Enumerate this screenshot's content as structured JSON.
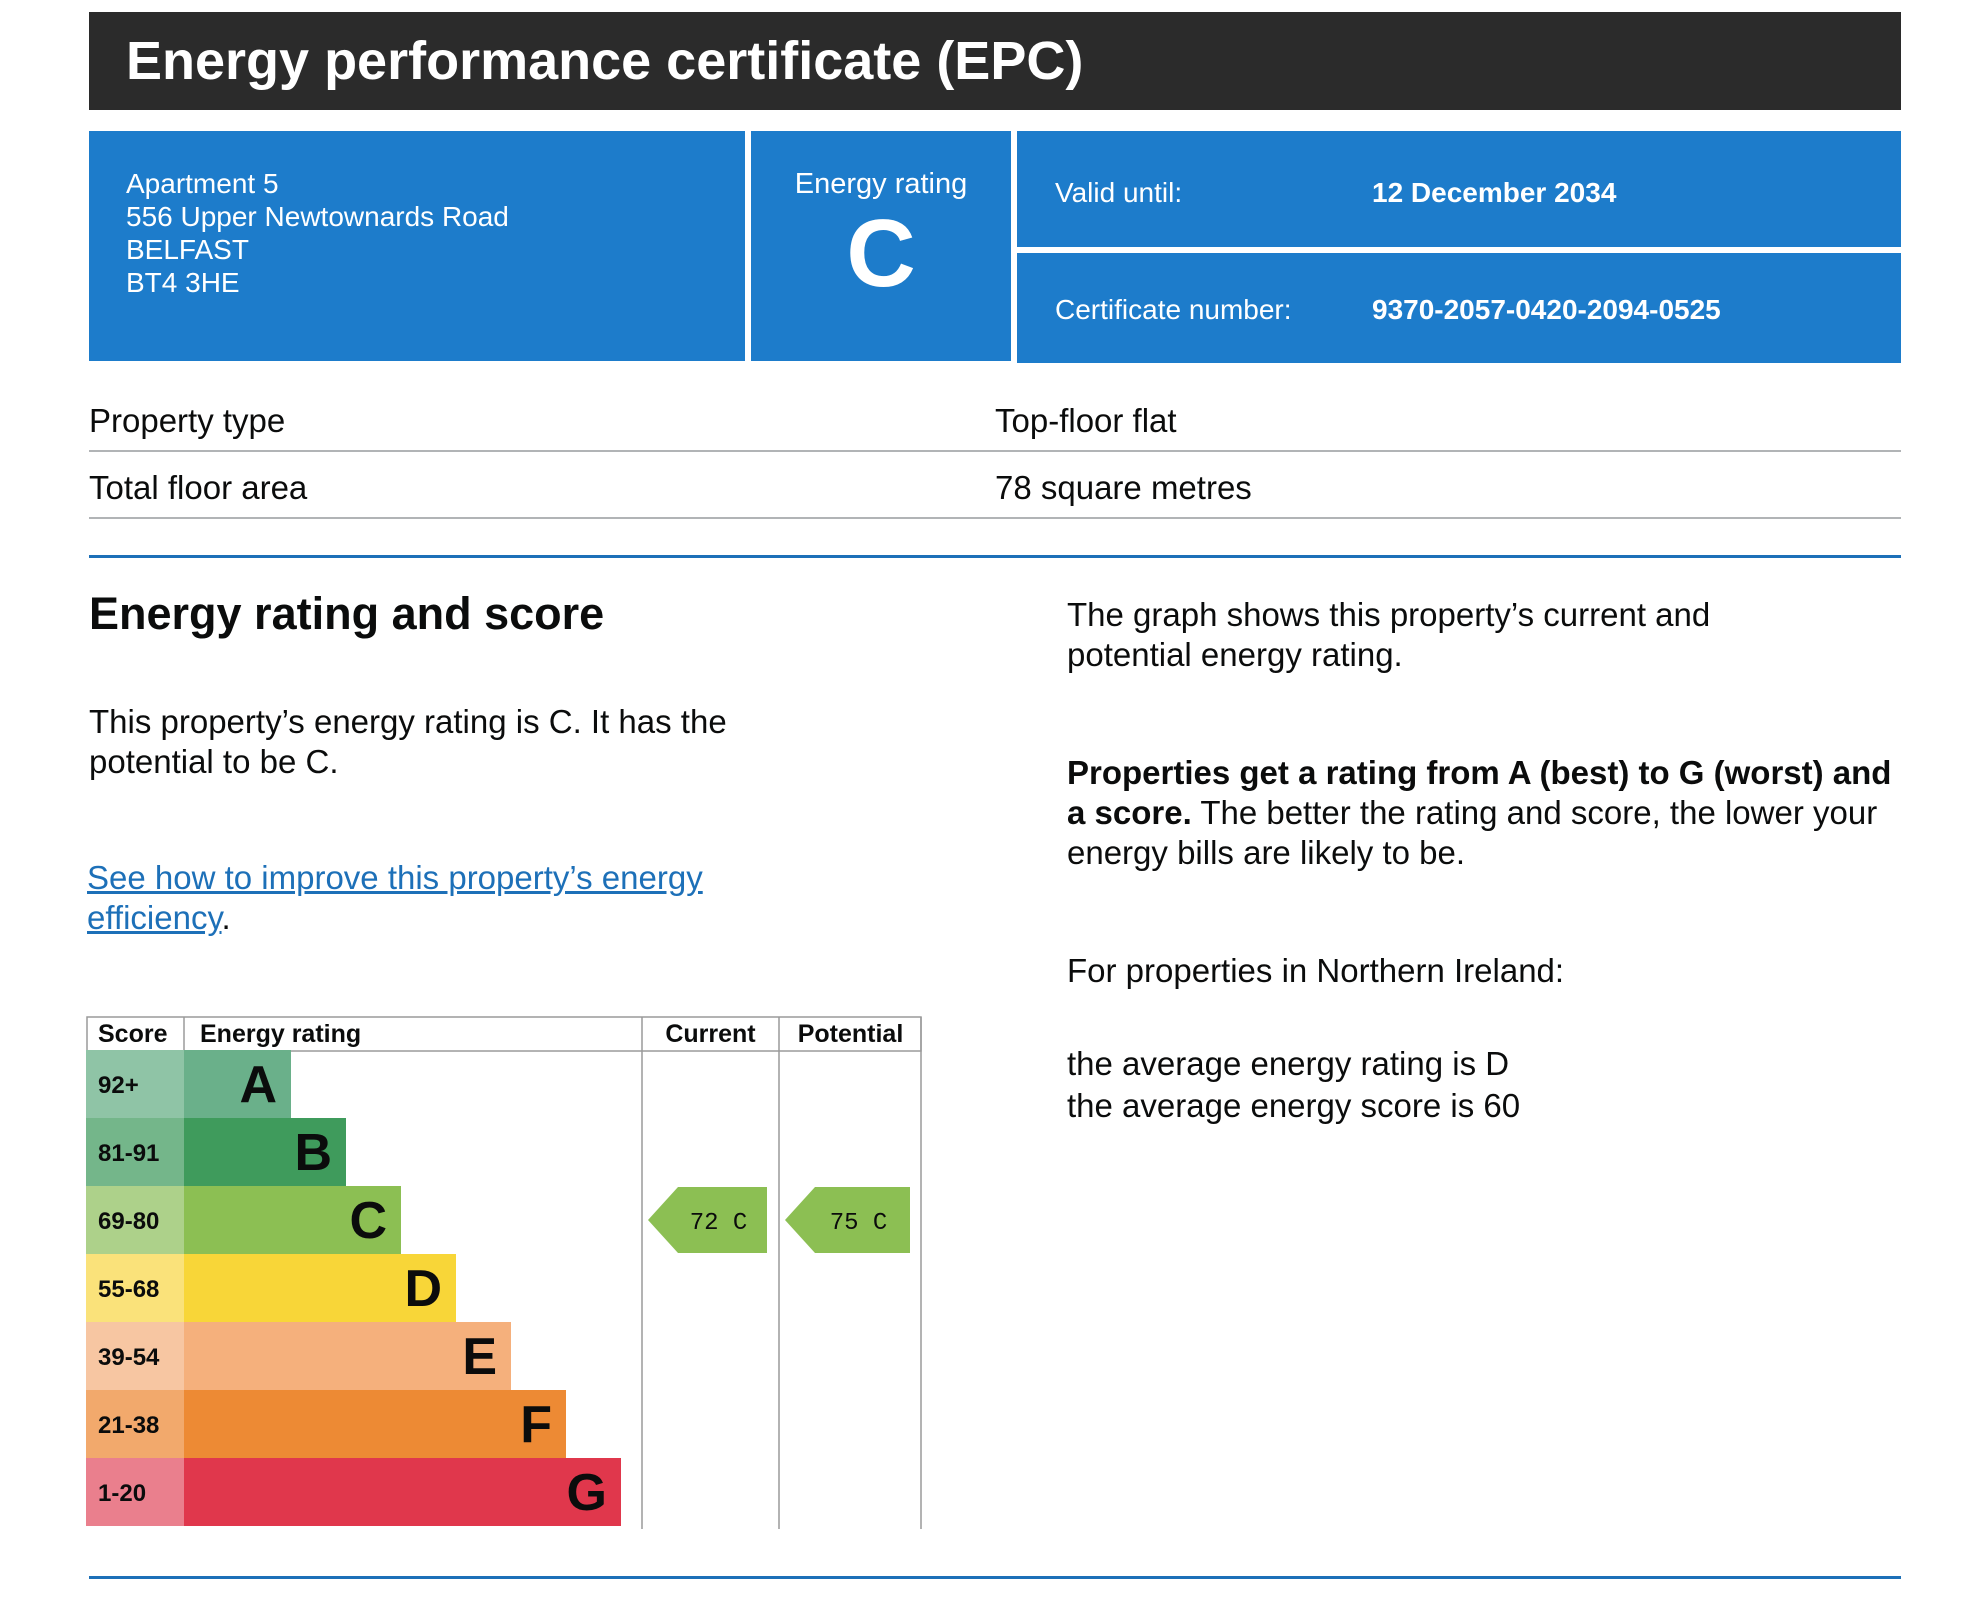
{
  "header": {
    "title": "Energy performance certificate (EPC)"
  },
  "address": {
    "line1": "Apartment 5",
    "line2": "556 Upper Newtownards Road",
    "line3": "BELFAST",
    "line4": "BT4 3HE"
  },
  "energy_rating_box": {
    "label": "Energy rating",
    "value": "C"
  },
  "valid_until": {
    "label": "Valid until:",
    "value": "12 December 2034"
  },
  "certificate_number": {
    "label": "Certificate number:",
    "value": "9370-2057-0420-2094-0525"
  },
  "property": [
    {
      "label": "Property type",
      "value": "Top-floor flat"
    },
    {
      "label": "Total floor area",
      "value": "78 square metres"
    }
  ],
  "section": {
    "heading": "Energy rating and score",
    "rating_text": "This property’s energy rating is C. It has the potential to be C.",
    "link_text": "See how to improve this property’s energy efficiency",
    "link_suffix": ".",
    "graph_text": "The graph shows this property’s current and potential energy rating.",
    "scale_bold": "Properties get a rating from A (best) to G (worst) and a score.",
    "scale_rest": " The better the rating and score, the lower your energy bills are likely to be.",
    "ni_heading": "For properties in Northern Ireland:",
    "avg_rating": "the average energy rating is D",
    "avg_score": "the average energy score is 60"
  },
  "chart_data": {
    "type": "table",
    "headers": {
      "score": "Score",
      "rating": "Energy rating",
      "current": "Current",
      "potential": "Potential"
    },
    "bands": [
      {
        "score": "92+",
        "letter": "A",
        "color": "#6ab08a",
        "score_bg": "#8fc4a6"
      },
      {
        "score": "81-91",
        "letter": "B",
        "color": "#3f9b5c",
        "score_bg": "#74b68a"
      },
      {
        "score": "69-80",
        "letter": "C",
        "color": "#8cbf53",
        "score_bg": "#add18a"
      },
      {
        "score": "55-68",
        "letter": "D",
        "color": "#f8d638",
        "score_bg": "#fae27a"
      },
      {
        "score": "39-54",
        "letter": "E",
        "color": "#f5b07c",
        "score_bg": "#f7c6a2"
      },
      {
        "score": "21-38",
        "letter": "F",
        "color": "#ed8a34",
        "score_bg": "#f2a96c"
      },
      {
        "score": "1-20",
        "letter": "G",
        "color": "#e0374c",
        "score_bg": "#ea7f8d"
      }
    ],
    "current": {
      "score": 72,
      "band": "C",
      "label": "72 C"
    },
    "potential": {
      "score": 75,
      "band": "C",
      "label": "75 C"
    }
  }
}
